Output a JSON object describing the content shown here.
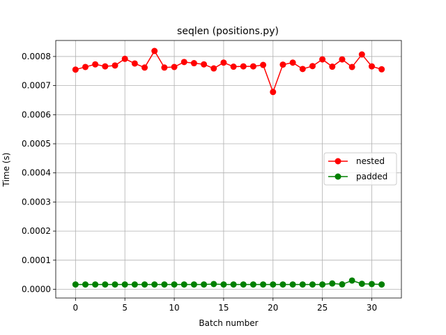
{
  "chart_data": {
    "type": "line",
    "title": "seqlen (positions.py)",
    "xlabel": "Batch number",
    "ylabel": "Time (s)",
    "xlim": [
      -2,
      33
    ],
    "ylim": [
      -3e-05,
      0.000855
    ],
    "xticks": [
      0,
      5,
      10,
      15,
      20,
      25,
      30
    ],
    "yticks": [
      0.0,
      0.0001,
      0.0002,
      0.0003,
      0.0004,
      0.0005,
      0.0006,
      0.0007,
      0.0008
    ],
    "ytick_labels": [
      "0.0000",
      "0.0001",
      "0.0002",
      "0.0003",
      "0.0004",
      "0.0005",
      "0.0006",
      "0.0007",
      "0.0008"
    ],
    "grid": true,
    "legend_position": "center-right",
    "x": [
      0,
      1,
      2,
      3,
      4,
      5,
      6,
      7,
      8,
      9,
      10,
      11,
      12,
      13,
      14,
      15,
      16,
      17,
      18,
      19,
      20,
      21,
      22,
      23,
      24,
      25,
      26,
      27,
      28,
      29,
      30,
      31
    ],
    "series": [
      {
        "name": "nested",
        "color": "#ff0000",
        "marker": "circle",
        "values": [
          0.000755,
          0.000764,
          0.000773,
          0.000766,
          0.000769,
          0.000792,
          0.000776,
          0.000762,
          0.000819,
          0.000762,
          0.000764,
          0.000781,
          0.000777,
          0.000773,
          0.000759,
          0.000779,
          0.000765,
          0.000766,
          0.000766,
          0.000771,
          0.000678,
          0.000772,
          0.000779,
          0.000757,
          0.000767,
          0.00079,
          0.000765,
          0.00079,
          0.000764,
          0.000807,
          0.000766,
          0.000756
        ]
      },
      {
        "name": "padded",
        "color": "#008000",
        "marker": "circle",
        "values": [
          1.65e-05,
          1.65e-05,
          1.65e-05,
          1.65e-05,
          1.65e-05,
          1.65e-05,
          1.65e-05,
          1.65e-05,
          1.65e-05,
          1.65e-05,
          1.65e-05,
          1.65e-05,
          1.65e-05,
          1.65e-05,
          1.8e-05,
          1.65e-05,
          1.65e-05,
          1.65e-05,
          1.65e-05,
          1.65e-05,
          1.65e-05,
          1.65e-05,
          1.65e-05,
          1.65e-05,
          1.65e-05,
          1.65e-05,
          2e-05,
          1.7e-05,
          3e-05,
          1.9e-05,
          1.8e-05,
          1.65e-05
        ]
      }
    ]
  }
}
